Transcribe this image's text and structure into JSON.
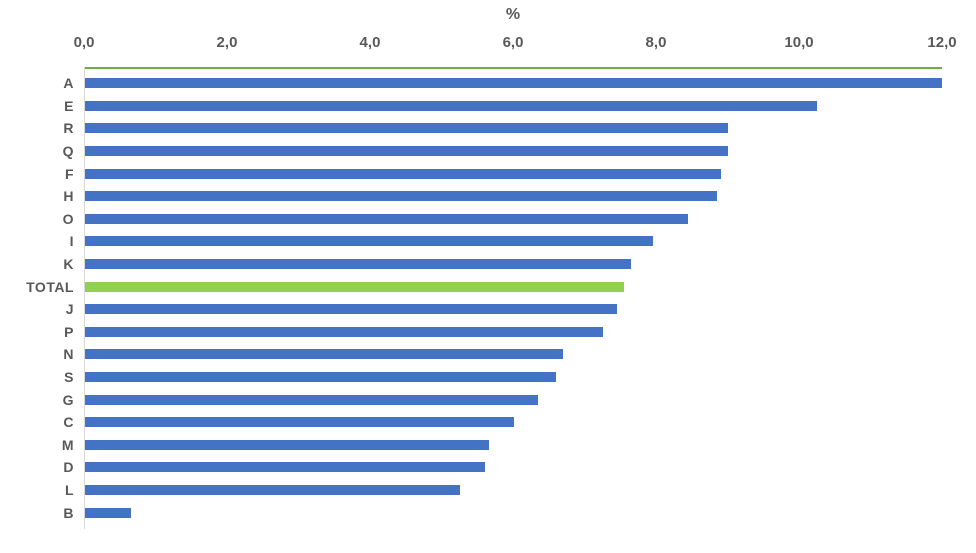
{
  "chart_data": {
    "type": "bar",
    "orientation": "horizontal",
    "title": "",
    "axis_title": "%",
    "axis_position": "top",
    "xlim": [
      0,
      12
    ],
    "grid": "off",
    "legend": "none",
    "x_ticks": [
      {
        "value": 0,
        "label": "0,0"
      },
      {
        "value": 2,
        "label": "2,0"
      },
      {
        "value": 4,
        "label": "4,0"
      },
      {
        "value": 6,
        "label": "6,0"
      },
      {
        "value": 8,
        "label": "8,0"
      },
      {
        "value": 10,
        "label": "10,0"
      },
      {
        "value": 12,
        "label": "12,0"
      }
    ],
    "categories": [
      "A",
      "E",
      "R",
      "Q",
      "F",
      "H",
      "O",
      "I",
      "K",
      "TOTAL",
      "J",
      "P",
      "N",
      "S",
      "G",
      "C",
      "M",
      "D",
      "L",
      "B"
    ],
    "values": [
      12.0,
      10.25,
      9.0,
      9.0,
      8.9,
      8.85,
      8.45,
      7.95,
      7.65,
      7.55,
      7.45,
      7.25,
      6.7,
      6.6,
      6.35,
      6.0,
      5.65,
      5.6,
      5.25,
      0.65
    ],
    "highlight_category": "TOTAL",
    "colors": {
      "bar": "#4472C4",
      "highlight_bar": "#92D050",
      "top_line": "#70AD47",
      "axis_line": "#D9D9D9",
      "text": "#595959"
    }
  }
}
